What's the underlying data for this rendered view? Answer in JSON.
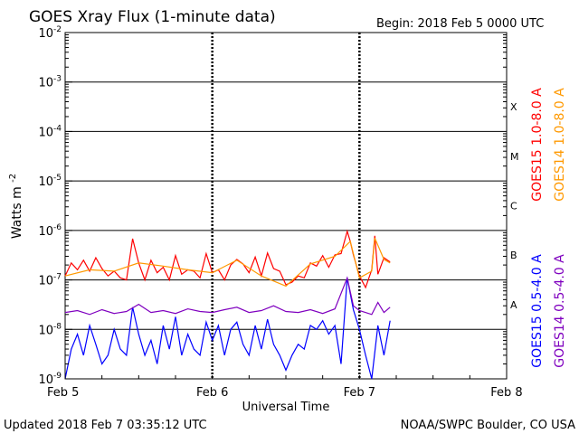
{
  "header": {
    "title": "GOES Xray Flux (1-minute data)",
    "begin": "Begin:  2018 Feb 5 0000 UTC"
  },
  "footer": {
    "updated": "Updated 2018 Feb  7 03:35:12 UTC",
    "credit": "NOAA/SWPC Boulder, CO USA"
  },
  "chart_data": {
    "type": "line",
    "title": "GOES Xray Flux (1-minute data)",
    "xlabel": "Universal Time",
    "ylabel": "Watts m",
    "ylabel_sup": "-2",
    "yscale": "log",
    "ylim": [
      1e-09,
      0.01
    ],
    "xlim": [
      0,
      72
    ],
    "x_unit": "hours since 2018 Feb 5 0000 UTC",
    "x_ticks": [
      {
        "x": 0,
        "label": "Feb 5"
      },
      {
        "x": 24,
        "label": "Feb 6"
      },
      {
        "x": 48,
        "label": "Feb 7"
      },
      {
        "x": 72,
        "label": "Feb 8"
      }
    ],
    "y_ticks": [
      {
        "exp": -9,
        "base": "10",
        "sup": "-9"
      },
      {
        "exp": -8,
        "base": "10",
        "sup": "-8"
      },
      {
        "exp": -7,
        "base": "10",
        "sup": "-7"
      },
      {
        "exp": -6,
        "base": "10",
        "sup": "-6"
      },
      {
        "exp": -5,
        "base": "10",
        "sup": "-5"
      },
      {
        "exp": -4,
        "base": "10",
        "sup": "-4"
      },
      {
        "exp": -3,
        "base": "10",
        "sup": "-3"
      },
      {
        "exp": -2,
        "base": "10",
        "sup": "-2"
      }
    ],
    "flare_classes": [
      {
        "label": "A",
        "exp": -8
      },
      {
        "label": "B",
        "exp": -7
      },
      {
        "label": "C",
        "exp": -6
      },
      {
        "label": "M",
        "exp": -5
      },
      {
        "label": "X",
        "exp": -4
      }
    ],
    "grid": true,
    "legend": [
      {
        "name": "GOES15 1.0-8.0 A",
        "color": "#ff0000",
        "group": "long"
      },
      {
        "name": "GOES14 1.0-8.0 A",
        "color": "#ff9900",
        "group": "long"
      },
      {
        "name": "GOES15 0.5-4.0 A",
        "color": "#0000ff",
        "group": "short"
      },
      {
        "name": "GOES14 0.5-4.0 A",
        "color": "#7f00bf",
        "group": "short"
      }
    ],
    "series": [
      {
        "name": "GOES15 1.0-8.0 A",
        "color": "#ff0000",
        "x": [
          0,
          1,
          2,
          3,
          4,
          5,
          6,
          7,
          8,
          9,
          10,
          11,
          12,
          13,
          14,
          15,
          16,
          17,
          18,
          19,
          20,
          21,
          22,
          23,
          24,
          25,
          26,
          27,
          28,
          29,
          30,
          31,
          32,
          33,
          34,
          35,
          36,
          37,
          38,
          39,
          40,
          41,
          42,
          43,
          44,
          45,
          46,
          46.5,
          47,
          48,
          49,
          50,
          50.5,
          51,
          52,
          53
        ],
        "y": [
          1.2e-07,
          2.2e-07,
          1.6e-07,
          2.5e-07,
          1.5e-07,
          2.8e-07,
          1.7e-07,
          1.2e-07,
          1.5e-07,
          1.1e-07,
          1e-07,
          6.8e-07,
          2.2e-07,
          1e-07,
          2.5e-07,
          1.4e-07,
          1.8e-07,
          1e-07,
          3.1e-07,
          1.3e-07,
          1.6e-07,
          1.5e-07,
          1.1e-07,
          3.4e-07,
          1.4e-07,
          1.6e-07,
          1e-07,
          2e-07,
          2.6e-07,
          2.1e-07,
          1.4e-07,
          2.9e-07,
          1.2e-07,
          3.5e-07,
          1.7e-07,
          1.5e-07,
          8e-08,
          9e-08,
          1.2e-07,
          1.1e-07,
          2.2e-07,
          1.9e-07,
          3.1e-07,
          1.8e-07,
          3.2e-07,
          3.4e-07,
          9.6e-07,
          6e-07,
          3.2e-07,
          1.2e-07,
          7e-08,
          1.6e-07,
          7.8e-07,
          1.3e-07,
          2.8e-07,
          2.3e-07
        ]
      },
      {
        "name": "GOES14 1.0-8.0 A",
        "color": "#ff9900",
        "x": [
          0,
          4,
          8,
          12,
          16,
          20,
          24,
          28,
          32,
          36,
          40,
          44,
          46.5,
          48,
          50,
          50.5,
          52,
          53
        ],
        "y": [
          1.2e-07,
          1.6e-07,
          1.5e-07,
          2.2e-07,
          1.9e-07,
          1.6e-07,
          1.4e-07,
          2.5e-07,
          1.2e-07,
          7.5e-08,
          2.1e-07,
          3e-07,
          6e-07,
          1.1e-07,
          1.5e-07,
          7e-07,
          2.6e-07,
          2.2e-07
        ]
      },
      {
        "name": "GOES15 0.5-4.0 A",
        "color": "#0000ff",
        "x": [
          0,
          1,
          2,
          3,
          4,
          5,
          6,
          7,
          8,
          9,
          10,
          11,
          12,
          13,
          14,
          15,
          16,
          17,
          18,
          19,
          20,
          21,
          22,
          23,
          24,
          25,
          26,
          27,
          28,
          29,
          30,
          31,
          32,
          33,
          34,
          35,
          36,
          37,
          38,
          39,
          40,
          41,
          42,
          43,
          44,
          45,
          46,
          47,
          48,
          49,
          50,
          51,
          52,
          53
        ],
        "y": [
          1e-09,
          4e-09,
          8e-09,
          3e-09,
          1.2e-08,
          5e-09,
          2e-09,
          3e-09,
          1e-08,
          4e-09,
          3e-09,
          2.8e-08,
          8e-09,
          3e-09,
          6e-09,
          2e-09,
          1.2e-08,
          4e-09,
          1.8e-08,
          3e-09,
          8e-09,
          4e-09,
          3e-09,
          1.4e-08,
          6e-09,
          1.2e-08,
          3e-09,
          1e-08,
          1.4e-08,
          5e-09,
          3e-09,
          1.2e-08,
          4e-09,
          1.6e-08,
          5e-09,
          3e-09,
          1.5e-09,
          3e-09,
          5e-09,
          4e-09,
          1.2e-08,
          1e-08,
          1.5e-08,
          8e-09,
          1.2e-08,
          2e-09,
          1.1e-07,
          2.5e-08,
          1e-08,
          3e-09,
          1e-09,
          1.2e-08,
          3e-09,
          1.5e-08
        ]
      },
      {
        "name": "GOES14 0.5-4.0 A",
        "color": "#7f00bf",
        "x": [
          0,
          2,
          4,
          6,
          8,
          10,
          12,
          14,
          16,
          18,
          20,
          22,
          24,
          26,
          28,
          30,
          32,
          34,
          36,
          38,
          40,
          42,
          44,
          46,
          47,
          48,
          50,
          51,
          52,
          53
        ],
        "y": [
          2.2e-08,
          2.4e-08,
          2e-08,
          2.5e-08,
          2.1e-08,
          2.3e-08,
          3.2e-08,
          2.2e-08,
          2.4e-08,
          2.1e-08,
          2.6e-08,
          2.3e-08,
          2.2e-08,
          2.5e-08,
          2.8e-08,
          2.2e-08,
          2.4e-08,
          3e-08,
          2.3e-08,
          2.2e-08,
          2.5e-08,
          2.1e-08,
          2.6e-08,
          1.1e-07,
          3e-08,
          2.4e-08,
          2e-08,
          3.5e-08,
          2.2e-08,
          2.8e-08
        ]
      }
    ]
  }
}
